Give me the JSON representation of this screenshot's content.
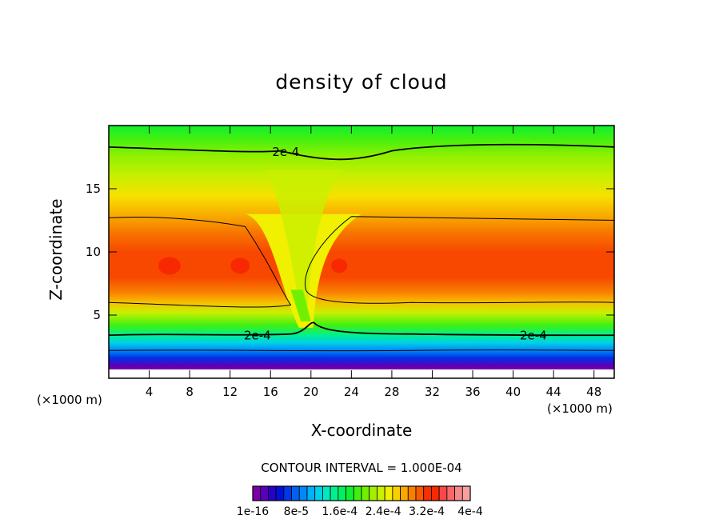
{
  "chart_data": {
    "type": "heatmap",
    "title": "density of cloud",
    "xlabel": "X-coordinate",
    "ylabel": "Z-coordinate",
    "x_unit_left": "(×1000 m)",
    "x_unit_right": "(×1000 m)",
    "xlim": [
      0,
      50
    ],
    "ylim": [
      0,
      20
    ],
    "x_ticks": [
      4,
      8,
      12,
      16,
      20,
      24,
      28,
      32,
      36,
      40,
      44,
      48
    ],
    "y_ticks": [
      5,
      10,
      15
    ],
    "contour_interval_text": "CONTOUR INTERVAL = 1.000E-04",
    "contour_labels": [
      {
        "text": "2e-4",
        "x": 17.5,
        "z": 17.9
      },
      {
        "text": "2e-4",
        "x": 14.7,
        "z": 3.4
      },
      {
        "text": "2e-4",
        "x": 42.0,
        "z": 3.4
      }
    ],
    "colorbar": {
      "colors": [
        "#7a00a8",
        "#5a00b8",
        "#2800c8",
        "#0010d8",
        "#0038e8",
        "#0060f0",
        "#0088f8",
        "#00b0f8",
        "#00d0e8",
        "#00e8c0",
        "#00f090",
        "#00f060",
        "#10f030",
        "#40f010",
        "#70f000",
        "#a0f000",
        "#c8f000",
        "#f0f000",
        "#f8d000",
        "#f8a800",
        "#f88000",
        "#f85800",
        "#f83000",
        "#f82800",
        "#f84848",
        "#f86868",
        "#f88888",
        "#f8a0a0"
      ],
      "tick_labels": [
        "1e-16",
        "8e-5",
        "1.6e-4",
        "2.4e-4",
        "3.2e-4",
        "4e-4"
      ]
    }
  }
}
